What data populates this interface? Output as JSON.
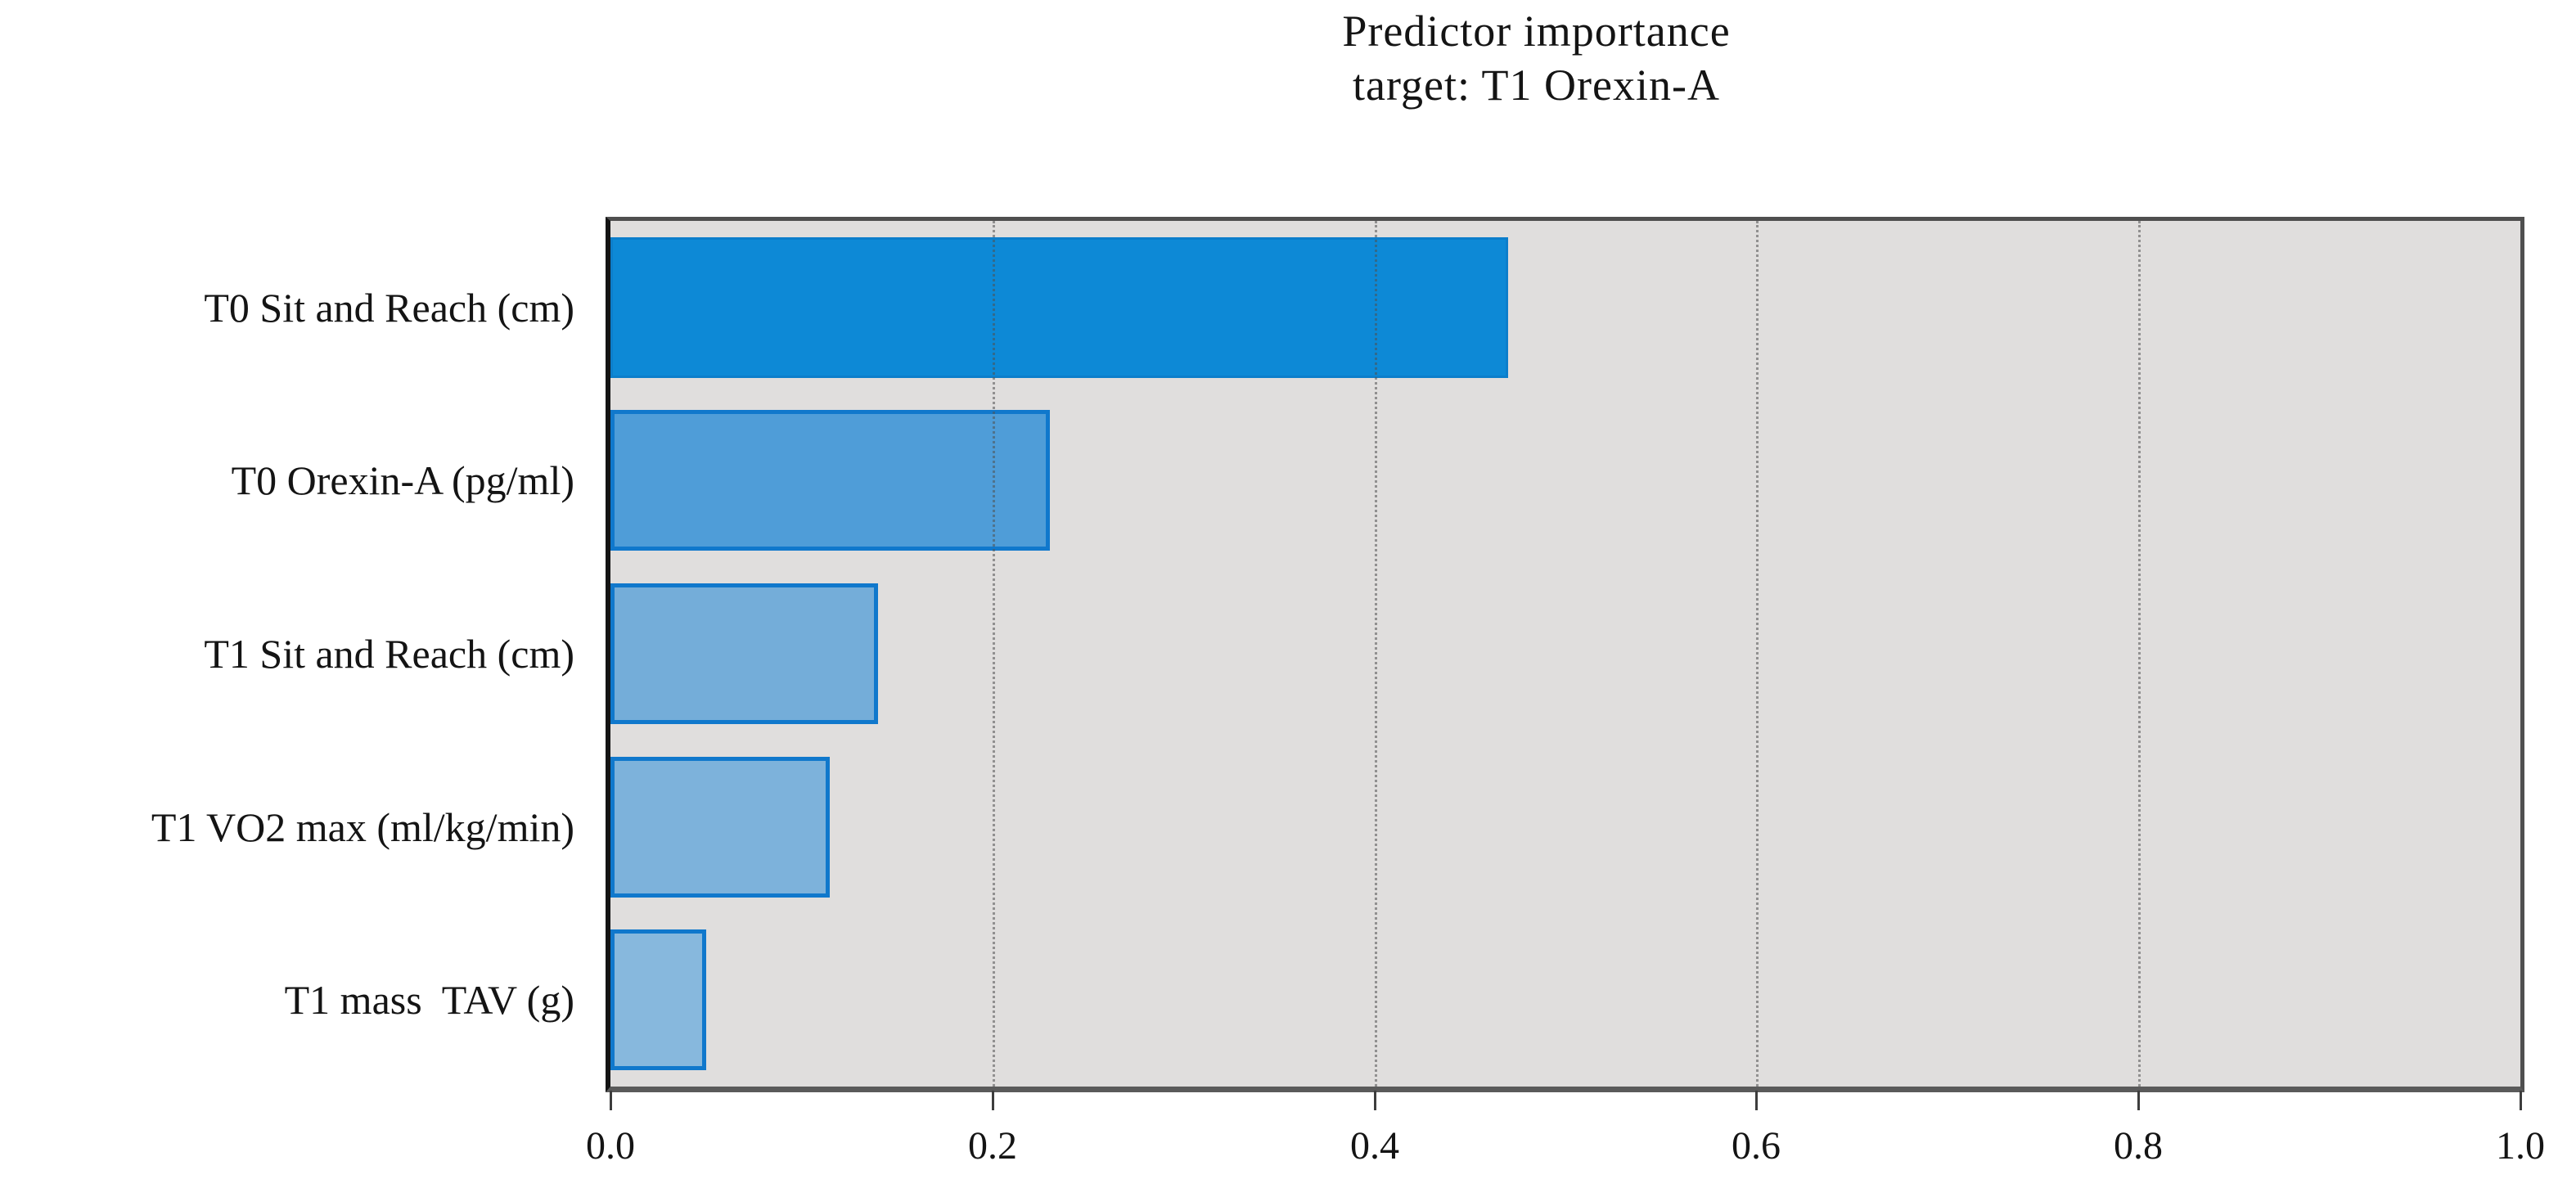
{
  "title": {
    "line1": "Predictor importance",
    "line2": "target: T1 Orexin-A"
  },
  "chart_data": {
    "type": "bar",
    "orientation": "horizontal",
    "title": "Predictor importance",
    "subtitle": "target: T1 Orexin-A",
    "categories": [
      "T0 Sit and Reach (cm)",
      "T0 Orexin-A (pg/ml)",
      "T1 Sit and Reach (cm)",
      "T1 VO2 max (ml/kg/min)",
      "T1 mass  TAV (g)"
    ],
    "values": [
      0.47,
      0.23,
      0.14,
      0.115,
      0.05
    ],
    "xlabel": "",
    "ylabel": "",
    "xlim": [
      0.0,
      1.0
    ],
    "x_ticks": [
      "0.0",
      "0.2",
      "0.4",
      "0.6",
      "0.8",
      "1.0"
    ],
    "grid": "vertical dotted gridlines at each x tick",
    "legend": "none",
    "bar_styles": [
      {
        "fill": "#0d89d6",
        "border": "#0c7ecb"
      },
      {
        "fill": "#4f9dd8",
        "border": "#1078cc"
      },
      {
        "fill": "#74add9",
        "border": "#1078cc"
      },
      {
        "fill": "#7db2db",
        "border": "#1078cc"
      },
      {
        "fill": "#87b8dd",
        "border": "#1078cc"
      }
    ],
    "colors": {
      "plot_background": "#e0dedd",
      "page_background": "#ffffff",
      "gridline": "#505050",
      "axis_left": "#141414",
      "axis_other": "#4f4f4f",
      "text": "#141414"
    }
  }
}
